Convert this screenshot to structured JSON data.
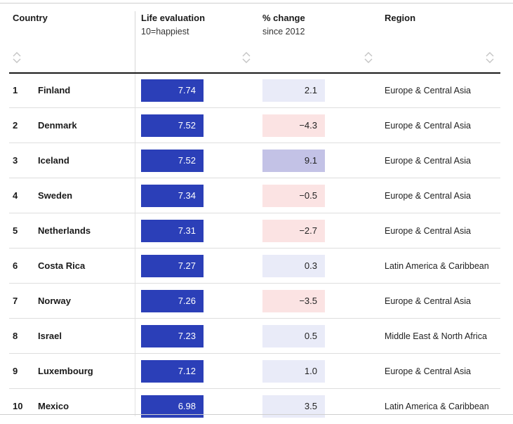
{
  "columns": [
    {
      "title": "Country",
      "subtitle": ""
    },
    {
      "title": "Life evaluation",
      "subtitle": "10=happiest"
    },
    {
      "title": "% change",
      "subtitle": "since 2012"
    },
    {
      "title": "Region",
      "subtitle": ""
    }
  ],
  "icons": {
    "sort": "sort-arrows-icon"
  },
  "colors": {
    "life_bar": "#2b3fb8",
    "change_positive": "#e9ebf8",
    "change_negative": "#fbe3e3",
    "change_high": "#c3c2e6"
  },
  "rows": [
    {
      "rank": "1",
      "country": "Finland",
      "life": "7.74",
      "change": "2.1",
      "change_tone": "positive",
      "region": "Europe & Central Asia"
    },
    {
      "rank": "2",
      "country": "Denmark",
      "life": "7.52",
      "change": "−4.3",
      "change_tone": "negative",
      "region": "Europe & Central Asia"
    },
    {
      "rank": "3",
      "country": "Iceland",
      "life": "7.52",
      "change": "9.1",
      "change_tone": "high",
      "region": "Europe & Central Asia"
    },
    {
      "rank": "4",
      "country": "Sweden",
      "life": "7.34",
      "change": "−0.5",
      "change_tone": "negative",
      "region": "Europe & Central Asia"
    },
    {
      "rank": "5",
      "country": "Netherlands",
      "life": "7.31",
      "change": "−2.7",
      "change_tone": "negative",
      "region": "Europe & Central Asia"
    },
    {
      "rank": "6",
      "country": "Costa Rica",
      "life": "7.27",
      "change": "0.3",
      "change_tone": "positive",
      "region": "Latin America & Caribbean"
    },
    {
      "rank": "7",
      "country": "Norway",
      "life": "7.26",
      "change": "−3.5",
      "change_tone": "negative",
      "region": "Europe & Central Asia"
    },
    {
      "rank": "8",
      "country": "Israel",
      "life": "7.23",
      "change": "0.5",
      "change_tone": "positive",
      "region": "Middle East & North Africa"
    },
    {
      "rank": "9",
      "country": "Luxembourg",
      "life": "7.12",
      "change": "1.0",
      "change_tone": "positive",
      "region": "Europe & Central Asia"
    },
    {
      "rank": "10",
      "country": "Mexico",
      "life": "6.98",
      "change": "3.5",
      "change_tone": "positive",
      "region": "Latin America & Caribbean"
    }
  ]
}
